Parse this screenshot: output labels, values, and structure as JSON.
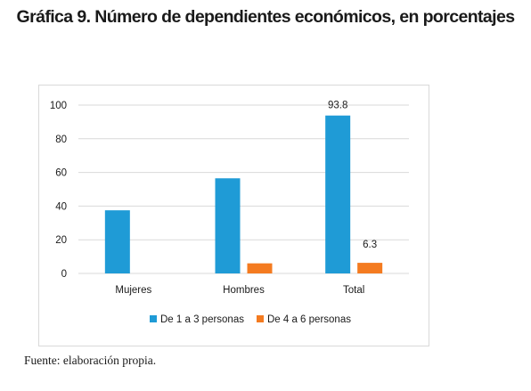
{
  "title": "Gráfica 9. Número de dependientes económicos, en porcentajes",
  "source": "Fuente: elaboración propia.",
  "colors": {
    "series1": "#1f9bd6",
    "series2": "#f47b20",
    "grid": "#d9d9d9",
    "text": "#1a1a1a"
  },
  "chart_data": {
    "type": "bar",
    "title": "Gráfica 9. Número de dependientes económicos, en porcentajes",
    "xlabel": "",
    "ylabel": "",
    "categories": [
      "Mujeres",
      "Hombres",
      "Total"
    ],
    "series": [
      {
        "name": "De 1 a 3 personas",
        "values": [
          37.5,
          56.5,
          93.8
        ],
        "color": "#1f9bd6"
      },
      {
        "name": "De 4 a 6 personas",
        "values": [
          0,
          6.0,
          6.3
        ],
        "color": "#f47b20"
      }
    ],
    "ylim": [
      0,
      100
    ],
    "yticks": [
      0,
      20,
      40,
      60,
      80,
      100
    ],
    "ytick_labels": [
      "0",
      "20",
      "40",
      "60",
      "80",
      "100"
    ],
    "data_labels": [
      {
        "series": 0,
        "category": 2,
        "text": "93.8"
      },
      {
        "series": 1,
        "category": 2,
        "text": "6.3"
      }
    ],
    "grid": true,
    "legend": "bottom"
  }
}
